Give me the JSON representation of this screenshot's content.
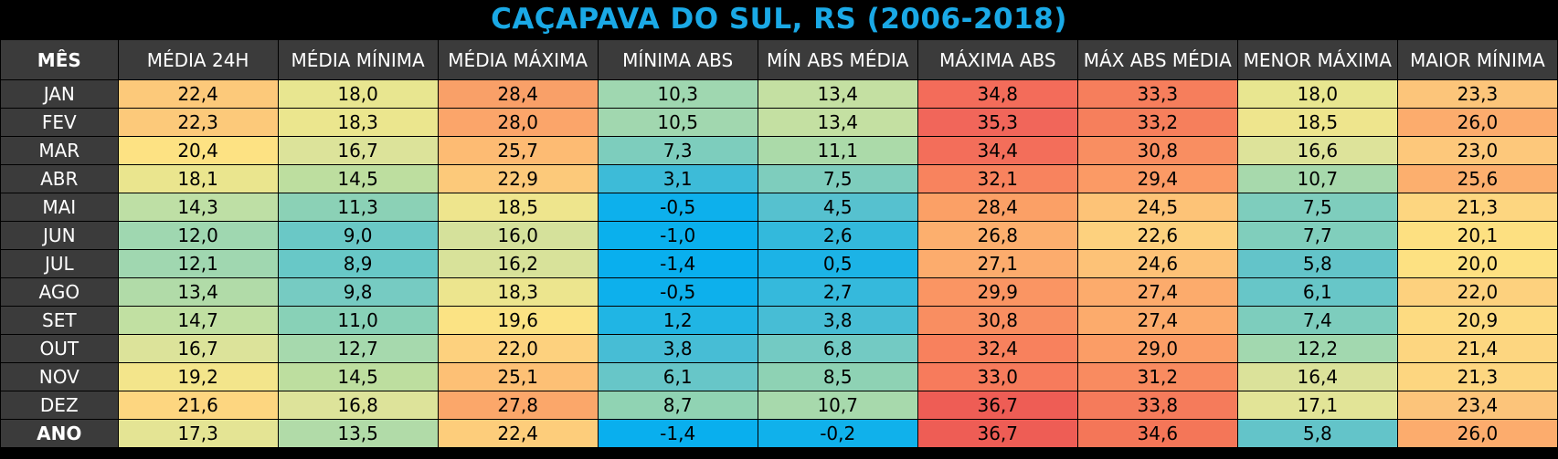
{
  "title": "CAÇAPAVA DO SUL, RS (2006-2018)",
  "chart_data": {
    "type": "table",
    "title": "CAÇAPAVA DO SUL, RS (2006-2018)",
    "columns": [
      "MÊS",
      "MÉDIA 24H",
      "MÉDIA MÍNIMA",
      "MÉDIA MÁXIMA",
      "MÍNIMA ABS",
      "MÍN ABS MÉDIA",
      "MÁXIMA ABS",
      "MÁX ABS MÉDIA",
      "MENOR MÁXIMA",
      "MAIOR MÍNIMA"
    ],
    "rows": [
      {
        "label": "JAN",
        "values": [
          "22,4",
          "18,0",
          "28,4",
          "10,3",
          "13,4",
          "34,8",
          "33,3",
          "18,0",
          "23,3"
        ],
        "colors": [
          "#fcc97a",
          "#e8e690",
          "#f9a068",
          "#9fd7b0",
          "#c4e0a2",
          "#f36c5a",
          "#f67e5c",
          "#e8e690",
          "#fcc57a"
        ]
      },
      {
        "label": "FEV",
        "values": [
          "22,3",
          "18,3",
          "28,0",
          "10,5",
          "13,4",
          "35,3",
          "33,2",
          "18,5",
          "26,0"
        ],
        "colors": [
          "#fcc97a",
          "#ebe68e",
          "#fba56a",
          "#a1d7af",
          "#c4e0a2",
          "#f1665a",
          "#f67f5c",
          "#eee58d",
          "#fcac6d"
        ]
      },
      {
        "label": "MAR",
        "values": [
          "20,4",
          "16,7",
          "25,7",
          "7,3",
          "11,1",
          "34,4",
          "30,8",
          "16,6",
          "23,0"
        ],
        "colors": [
          "#fde283",
          "#dce39a",
          "#fdbb73",
          "#7dcdbd",
          "#abdaa9",
          "#f36e5a",
          "#f98e61",
          "#dde39a",
          "#fdc87b"
        ]
      },
      {
        "label": "ABR",
        "values": [
          "18,1",
          "14,5",
          "22,9",
          "3,1",
          "7,5",
          "32,1",
          "29,4",
          "10,7",
          "25,6"
        ],
        "colors": [
          "#eae58e",
          "#bdde9f",
          "#fcc97a",
          "#3dbbd8",
          "#7ecdbd",
          "#f8835e",
          "#fb9a65",
          "#a7d9ac",
          "#fcaf6e"
        ]
      },
      {
        "label": "MAI",
        "values": [
          "14,3",
          "11,3",
          "18,5",
          "-0,5",
          "4,5",
          "28,4",
          "24,5",
          "7,5",
          "21,3"
        ],
        "colors": [
          "#bedfa5",
          "#8bd1b6",
          "#eee58d",
          "#0db0ec",
          "#56c1cf",
          "#fba066",
          "#fdc377",
          "#7ecdbd",
          "#fdd680"
        ]
      },
      {
        "label": "JUN",
        "values": [
          "12,0",
          "9,0",
          "16,0",
          "-1,0",
          "2,6",
          "26,8",
          "22,6",
          "7,7",
          "20,1"
        ],
        "colors": [
          "#9fd7b0",
          "#6ac8c6",
          "#d5e19b",
          "#0ab0ed",
          "#33b9dc",
          "#fcaf6e",
          "#fdd17e",
          "#80cebc",
          "#fde081"
        ]
      },
      {
        "label": "JUL",
        "values": [
          "12,1",
          "8,9",
          "16,2",
          "-1,4",
          "0,5",
          "27,1",
          "24,6",
          "5,8",
          "20,0"
        ],
        "colors": [
          "#a0d7b0",
          "#68c8c7",
          "#d8e29a",
          "#09afee",
          "#1cb3e6",
          "#fcac6d",
          "#fdc277",
          "#63c4c9",
          "#fde182"
        ]
      },
      {
        "label": "AGO",
        "values": [
          "13,4",
          "9,8",
          "18,3",
          "-0,5",
          "2,7",
          "29,9",
          "27,4",
          "6,1",
          "22,0"
        ],
        "colors": [
          "#b1dba8",
          "#76cbc2",
          "#ece58e",
          "#0db0ec",
          "#35b9dc",
          "#fa9563",
          "#fcab6c",
          "#67c6c8",
          "#fdd17e"
        ]
      },
      {
        "label": "SET",
        "values": [
          "14,7",
          "11,0",
          "19,6",
          "1,2",
          "3,8",
          "30,8",
          "27,4",
          "7,4",
          "20,9"
        ],
        "colors": [
          "#c1e0a2",
          "#88d1b7",
          "#fbe384",
          "#20b5e4",
          "#47bdd5",
          "#f98e61",
          "#fcab6c",
          "#7dcdbd",
          "#fddb81"
        ]
      },
      {
        "label": "OUT",
        "values": [
          "16,7",
          "12,7",
          "22,0",
          "3,8",
          "6,8",
          "32,4",
          "29,0",
          "12,2",
          "21,4"
        ],
        "colors": [
          "#dce39a",
          "#a6d9ad",
          "#fdd17e",
          "#47bdd5",
          "#73cac3",
          "#f8815d",
          "#fb9d66",
          "#a2d8af",
          "#fdd680"
        ]
      },
      {
        "label": "NOV",
        "values": [
          "19,2",
          "14,5",
          "25,1",
          "6,1",
          "8,5",
          "33,0",
          "31,2",
          "16,4",
          "21,3"
        ],
        "colors": [
          "#f3e58b",
          "#bdde9f",
          "#fdc075",
          "#67c6c8",
          "#8ed2b4",
          "#f77b5c",
          "#f98b60",
          "#dbe29a",
          "#fdd680"
        ]
      },
      {
        "label": "DEZ",
        "values": [
          "21,6",
          "16,8",
          "27,8",
          "8,7",
          "10,7",
          "36,7",
          "33,8",
          "17,1",
          "23,4"
        ],
        "colors": [
          "#fdd680",
          "#dde39a",
          "#fba76a",
          "#90d3b3",
          "#a7d9ac",
          "#ee5d55",
          "#f57b5b",
          "#e2e497",
          "#fcc47a"
        ]
      }
    ],
    "total": {
      "label": "ANO",
      "values": [
        "17,3",
        "13,5",
        "22,4",
        "-1,4",
        "-0,2",
        "36,7",
        "34,6",
        "5,8",
        "26,0"
      ],
      "colors": [
        "#e4e494",
        "#b1dba8",
        "#fdcd7b",
        "#09afee",
        "#10b1eb",
        "#ee5d55",
        "#f47658",
        "#63c4c9",
        "#fcac6d"
      ]
    }
  }
}
